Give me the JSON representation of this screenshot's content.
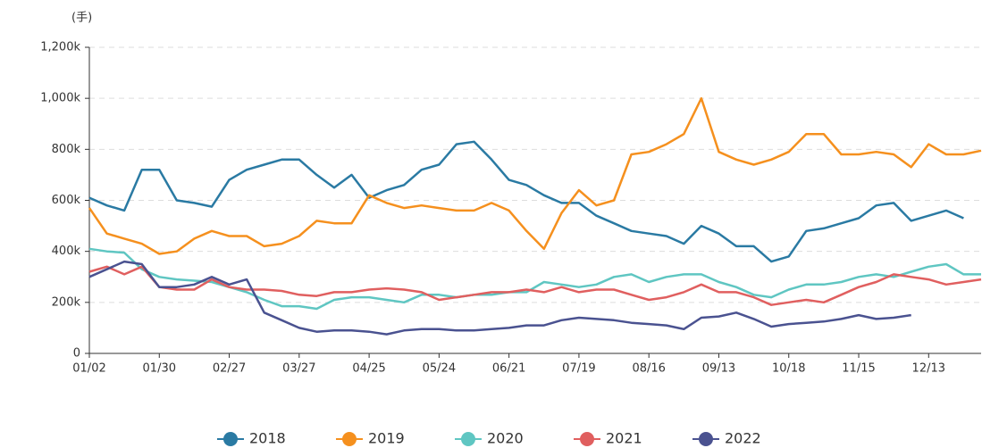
{
  "chart_data": {
    "type": "line",
    "y_label": "(手)",
    "categories": [
      "01/02",
      null,
      null,
      null,
      "01/30",
      null,
      null,
      null,
      "02/27",
      null,
      null,
      null,
      "03/27",
      null,
      null,
      null,
      "04/25",
      null,
      null,
      null,
      "05/24",
      null,
      null,
      null,
      "06/21",
      null,
      null,
      null,
      "07/19",
      null,
      null,
      null,
      "08/16",
      null,
      null,
      null,
      "09/13",
      null,
      null,
      null,
      "10/18",
      null,
      null,
      null,
      "11/15",
      null,
      null,
      null,
      "12/13",
      null,
      null,
      null
    ],
    "ylim": [
      0,
      1200000
    ],
    "yticks": [
      0,
      {
        "value": 200000,
        "label": "200k"
      },
      {
        "value": 400000,
        "label": "400k"
      },
      {
        "value": 600000,
        "label": "600k"
      },
      {
        "value": 800000,
        "label": "800k"
      },
      {
        "value": 1000000,
        "label": "1,000k"
      },
      {
        "value": 1200000,
        "label": "1,200k"
      }
    ],
    "grid": true,
    "legend": "bottom",
    "series": [
      {
        "name": "2018",
        "color": "#2a7aa3",
        "values": [
          610000,
          580000,
          560000,
          720000,
          720000,
          600000,
          590000,
          575000,
          680000,
          720000,
          740000,
          760000,
          760000,
          700000,
          650000,
          700000,
          610000,
          640000,
          660000,
          720000,
          740000,
          820000,
          830000,
          760000,
          680000,
          660000,
          620000,
          590000,
          590000,
          540000,
          510000,
          480000,
          470000,
          460000,
          430000,
          500000,
          470000,
          420000,
          420000,
          360000,
          380000,
          480000,
          490000,
          510000,
          530000,
          580000,
          590000,
          520000,
          540000,
          560000,
          530000,
          null
        ]
      },
      {
        "name": "2019",
        "color": "#f5901e",
        "values": [
          570000,
          470000,
          450000,
          430000,
          390000,
          400000,
          450000,
          480000,
          460000,
          460000,
          420000,
          430000,
          460000,
          520000,
          510000,
          510000,
          620000,
          590000,
          570000,
          580000,
          570000,
          560000,
          560000,
          590000,
          560000,
          480000,
          410000,
          550000,
          640000,
          580000,
          600000,
          780000,
          790000,
          820000,
          860000,
          1000000,
          790000,
          760000,
          740000,
          760000,
          790000,
          860000,
          860000,
          780000,
          780000,
          790000,
          780000,
          730000,
          820000,
          780000,
          780000,
          795000
        ]
      },
      {
        "name": "2020",
        "color": "#5fc6c2",
        "values": [
          410000,
          400000,
          395000,
          330000,
          300000,
          290000,
          285000,
          280000,
          260000,
          240000,
          210000,
          185000,
          185000,
          175000,
          210000,
          220000,
          220000,
          210000,
          200000,
          230000,
          230000,
          220000,
          230000,
          230000,
          240000,
          240000,
          280000,
          270000,
          260000,
          270000,
          300000,
          310000,
          280000,
          300000,
          310000,
          310000,
          280000,
          260000,
          230000,
          220000,
          250000,
          270000,
          270000,
          280000,
          300000,
          310000,
          300000,
          320000,
          340000,
          350000,
          310000,
          310000
        ]
      },
      {
        "name": "2021",
        "color": "#e05f5f",
        "values": [
          320000,
          340000,
          310000,
          340000,
          260000,
          250000,
          250000,
          290000,
          260000,
          250000,
          250000,
          245000,
          230000,
          225000,
          240000,
          240000,
          250000,
          255000,
          250000,
          240000,
          210000,
          220000,
          230000,
          240000,
          240000,
          250000,
          240000,
          260000,
          240000,
          250000,
          250000,
          230000,
          210000,
          220000,
          240000,
          270000,
          240000,
          240000,
          220000,
          190000,
          200000,
          210000,
          200000,
          230000,
          260000,
          280000,
          310000,
          300000,
          290000,
          270000,
          280000,
          290000
        ]
      },
      {
        "name": "2022",
        "color": "#4a5290",
        "values": [
          300000,
          330000,
          360000,
          350000,
          260000,
          260000,
          270000,
          300000,
          270000,
          290000,
          160000,
          130000,
          100000,
          85000,
          90000,
          90000,
          85000,
          75000,
          90000,
          95000,
          95000,
          90000,
          90000,
          95000,
          100000,
          110000,
          110000,
          130000,
          140000,
          135000,
          130000,
          120000,
          115000,
          110000,
          95000,
          140000,
          145000,
          160000,
          135000,
          105000,
          115000,
          120000,
          125000,
          135000,
          150000,
          135000,
          140000,
          150000,
          null,
          null,
          null,
          null
        ]
      }
    ]
  }
}
